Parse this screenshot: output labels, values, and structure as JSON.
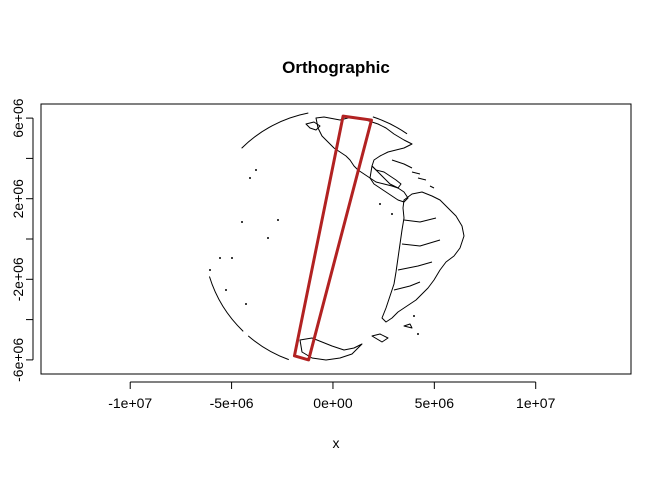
{
  "chart_data": {
    "type": "map",
    "title": "Orthographic",
    "xlabel": "x",
    "ylabel": "",
    "xlim": [
      -14400000,
      14700000
    ],
    "ylim": [
      -6700000,
      6700000
    ],
    "x_ticks": [
      {
        "value": -10000000,
        "label": "-1e+07"
      },
      {
        "value": -5000000,
        "label": "-5e+06"
      },
      {
        "value": 0,
        "label": "0e+00"
      },
      {
        "value": 5000000,
        "label": "5e+06"
      },
      {
        "value": 10000000,
        "label": "1e+07"
      }
    ],
    "y_ticks": [
      {
        "value": -6000000,
        "label": "-6e+06"
      },
      {
        "value": -4000000,
        "label": ""
      },
      {
        "value": -2000000,
        "label": "-2e+06"
      },
      {
        "value": 0,
        "label": ""
      },
      {
        "value": 2000000,
        "label": "2e+06"
      },
      {
        "value": 4000000,
        "label": ""
      },
      {
        "value": 6000000,
        "label": "6e+06"
      }
    ],
    "globe_radius": 6371000,
    "highlight_color": "#b22222",
    "highlight_region": [
      [
        500000,
        6100000
      ],
      [
        1900000,
        5900000
      ],
      [
        -1200000,
        -6000000
      ],
      [
        -1900000,
        -5800000
      ]
    ],
    "coastline_color": "#000000"
  }
}
